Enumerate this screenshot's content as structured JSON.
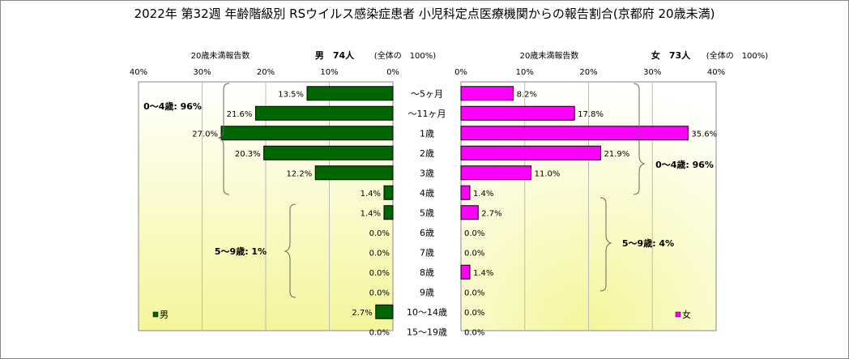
{
  "chart_data": {
    "type": "bar",
    "title": "2022年 第32週 年齢階級別 RSウイルス感染症患者 小児科定点医療機関からの報告割合(京都府 20歳未満)",
    "categories": [
      "～5ヶ月",
      "～11ヶ月",
      "1歳",
      "2歳",
      "3歳",
      "4歳",
      "5歳",
      "6歳",
      "7歳",
      "8歳",
      "9歳",
      "10～14歳",
      "15～19歳"
    ],
    "x_ticks_left": [
      "40%",
      "30%",
      "20%",
      "10%",
      "0%"
    ],
    "x_ticks_right": [
      "0%",
      "10%",
      "20%",
      "30%",
      "40%"
    ],
    "xlim": [
      0,
      40
    ],
    "series": [
      {
        "name": "男",
        "header_label": "20歳未満報告数",
        "header_count": "男　74人",
        "header_total": "(全体の　100%)",
        "color": "#006600",
        "values": [
          13.5,
          21.6,
          27.0,
          20.3,
          12.2,
          1.4,
          1.4,
          0.0,
          0.0,
          0.0,
          0.0,
          2.7,
          0.0
        ],
        "labels": [
          "13.5%",
          "21.6%",
          "27.0%",
          "20.3%",
          "12.2%",
          "1.4%",
          "1.4%",
          "0.0%",
          "0.0%",
          "0.0%",
          "0.0%",
          "2.7%",
          "0.0%"
        ],
        "group_labels": [
          "0～4歳: 96%",
          "5～9歳: 1%"
        ]
      },
      {
        "name": "女",
        "header_label": "20歳未満報告数",
        "header_count": "女　73人",
        "header_total": "(全体の　100%)",
        "color": "#FF00FF",
        "values": [
          8.2,
          17.8,
          35.6,
          21.9,
          11.0,
          1.4,
          2.7,
          0.0,
          0.0,
          1.4,
          0.0,
          0.0,
          0.0
        ],
        "labels": [
          "8.2%",
          "17.8%",
          "35.6%",
          "21.9%",
          "11.0%",
          "1.4%",
          "2.7%",
          "0.0%",
          "0.0%",
          "1.4%",
          "0.0%",
          "0.0%",
          "0.0%"
        ],
        "group_labels": [
          "0～4歳: 96%",
          "5～9歳: 4%"
        ]
      }
    ],
    "grid": true
  }
}
